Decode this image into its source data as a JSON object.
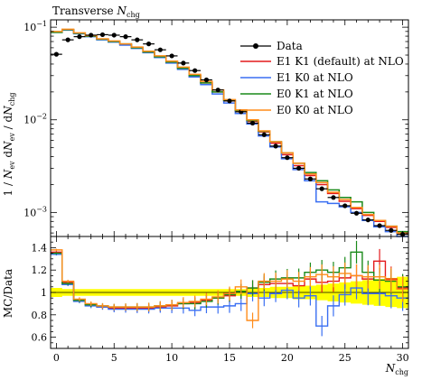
{
  "chart_data": [
    {
      "type": "line",
      "title_main": "Transverse ",
      "title_sub_italic": "N",
      "title_sub": "chg",
      "ylabel": "1 / Nev dNev / dNchg",
      "yscale": "log",
      "ylim": [
        0.00055,
        0.12
      ],
      "xlim": [
        -0.5,
        30.5
      ],
      "yticks": [
        {
          "value": 0.1,
          "base": "10",
          "exp": "−1"
        },
        {
          "value": 0.01,
          "base": "10",
          "exp": "−2"
        },
        {
          "value": 0.001,
          "base": "10",
          "exp": "−3"
        }
      ],
      "legend_position": "top-right",
      "data_points": {
        "name": "Data",
        "x": [
          0,
          1,
          2,
          3,
          4,
          5,
          6,
          7,
          8,
          9,
          10,
          11,
          12,
          13,
          14,
          15,
          16,
          17,
          18,
          19,
          20,
          21,
          22,
          23,
          24,
          25,
          26,
          27,
          28,
          29,
          30
        ],
        "y": [
          0.051,
          0.073,
          0.079,
          0.082,
          0.083,
          0.082,
          0.079,
          0.073,
          0.066,
          0.057,
          0.049,
          0.041,
          0.034,
          0.027,
          0.021,
          0.016,
          0.0122,
          0.0092,
          0.0069,
          0.0052,
          0.0039,
          0.003,
          0.0023,
          0.0018,
          0.00145,
          0.00118,
          0.00098,
          0.00083,
          0.00072,
          0.00064,
          0.00058
        ]
      },
      "series": [
        {
          "name": "E1 K1 (default) at NLO",
          "color": "#e41a1c",
          "values": [
            0.089,
            0.094,
            0.086,
            0.08,
            0.074,
            0.07,
            0.065,
            0.06,
            0.054,
            0.048,
            0.042,
            0.036,
            0.03,
            0.025,
            0.02,
            0.016,
            0.0124,
            0.0096,
            0.0074,
            0.0056,
            0.0042,
            0.0032,
            0.0025,
            0.002,
            0.0016,
            0.00132,
            0.0011,
            0.00093,
            0.0008,
            0.00069,
            0.0006
          ]
        },
        {
          "name": "E1 K0 at NLO",
          "color": "#3a6ff2",
          "values": [
            0.088,
            0.093,
            0.085,
            0.079,
            0.073,
            0.069,
            0.064,
            0.059,
            0.053,
            0.047,
            0.041,
            0.035,
            0.029,
            0.024,
            0.019,
            0.0152,
            0.0117,
            0.009,
            0.0067,
            0.0051,
            0.0038,
            0.0029,
            0.0022,
            0.0013,
            0.00125,
            0.00115,
            0.001,
            0.00082,
            0.0007,
            0.00062,
            0.00055
          ]
        },
        {
          "name": "E0 K1 at NLO",
          "color": "#1a8a1a",
          "values": [
            0.088,
            0.094,
            0.086,
            0.08,
            0.074,
            0.07,
            0.066,
            0.06,
            0.054,
            0.048,
            0.042,
            0.036,
            0.03,
            0.025,
            0.02,
            0.0162,
            0.0126,
            0.0098,
            0.0075,
            0.0058,
            0.0044,
            0.0034,
            0.0027,
            0.0022,
            0.00175,
            0.00145,
            0.0013,
            0.001,
            0.00082,
            0.00071,
            0.00062
          ]
        },
        {
          "name": "E0 K0 at NLO",
          "color": "#ff8c1a",
          "values": [
            0.09,
            0.095,
            0.087,
            0.081,
            0.075,
            0.071,
            0.066,
            0.061,
            0.055,
            0.049,
            0.043,
            0.037,
            0.031,
            0.026,
            0.021,
            0.0165,
            0.0128,
            0.01,
            0.0076,
            0.0058,
            0.0044,
            0.0034,
            0.0026,
            0.0021,
            0.00165,
            0.00138,
            0.00113,
            0.00095,
            0.00082,
            0.00071,
            0.0006
          ]
        }
      ]
    },
    {
      "type": "line",
      "ylabel": "MC/Data",
      "xlabel_italic": "N",
      "xlabel_sub": "chg",
      "ylim": [
        0.5,
        1.5
      ],
      "xlim": [
        -0.5,
        30.5
      ],
      "yticks": [
        "0.6",
        "0.8",
        "1",
        "1.2",
        "1.4"
      ],
      "xticks": [
        "0",
        "5",
        "10",
        "15",
        "20",
        "25",
        "30"
      ],
      "uncertainty_band": {
        "color": "#ffff00",
        "lower": [
          0.96,
          0.97,
          0.97,
          0.97,
          0.97,
          0.97,
          0.97,
          0.97,
          0.97,
          0.97,
          0.97,
          0.97,
          0.97,
          0.97,
          0.97,
          0.97,
          0.97,
          0.96,
          0.96,
          0.95,
          0.95,
          0.94,
          0.94,
          0.93,
          0.92,
          0.91,
          0.9,
          0.89,
          0.88,
          0.87,
          0.86
        ],
        "upper": [
          1.04,
          1.03,
          1.03,
          1.03,
          1.03,
          1.03,
          1.03,
          1.03,
          1.03,
          1.03,
          1.03,
          1.03,
          1.03,
          1.03,
          1.03,
          1.03,
          1.03,
          1.04,
          1.04,
          1.05,
          1.05,
          1.06,
          1.06,
          1.07,
          1.08,
          1.09,
          1.1,
          1.11,
          1.12,
          1.13,
          1.14
        ]
      },
      "series": [
        {
          "name": "E1 K1 (default) at NLO",
          "color": "#e41a1c",
          "values": [
            1.36,
            1.09,
            0.93,
            0.89,
            0.87,
            0.86,
            0.86,
            0.86,
            0.86,
            0.87,
            0.88,
            0.9,
            0.91,
            0.93,
            0.95,
            0.97,
            1.01,
            1.04,
            1.07,
            1.08,
            1.08,
            1.06,
            1.12,
            1.09,
            1.1,
            1.13,
            1.15,
            1.12,
            1.28,
            1.12,
            1.04
          ]
        },
        {
          "name": "E1 K0 at NLO",
          "color": "#3a6ff2",
          "values": [
            1.34,
            1.07,
            0.92,
            0.88,
            0.87,
            0.85,
            0.85,
            0.85,
            0.85,
            0.86,
            0.86,
            0.86,
            0.84,
            0.87,
            0.87,
            0.88,
            0.9,
            0.99,
            0.95,
            0.99,
            1.02,
            0.95,
            0.97,
            0.7,
            0.88,
            0.98,
            1.04,
            0.99,
            0.99,
            0.97,
            0.95
          ]
        },
        {
          "name": "E0 K1 at NLO",
          "color": "#1a8a1a",
          "values": [
            1.35,
            1.08,
            0.93,
            0.89,
            0.88,
            0.87,
            0.87,
            0.87,
            0.87,
            0.88,
            0.89,
            0.9,
            0.9,
            0.92,
            0.95,
            0.98,
            1.01,
            1.04,
            1.09,
            1.12,
            1.13,
            1.13,
            1.18,
            1.2,
            1.18,
            1.22,
            1.36,
            1.18,
            1.11,
            1.1,
            1.05
          ]
        },
        {
          "name": "E0 K0 at NLO",
          "color": "#ff8c1a",
          "values": [
            1.38,
            1.1,
            0.94,
            0.9,
            0.88,
            0.87,
            0.87,
            0.87,
            0.87,
            0.88,
            0.89,
            0.91,
            0.92,
            0.94,
            0.96,
            0.99,
            1.05,
            0.75,
            1.1,
            1.1,
            1.12,
            1.1,
            1.14,
            1.16,
            1.14,
            1.17,
            1.15,
            1.14,
            1.14,
            1.11,
            1.03
          ]
        }
      ]
    }
  ]
}
